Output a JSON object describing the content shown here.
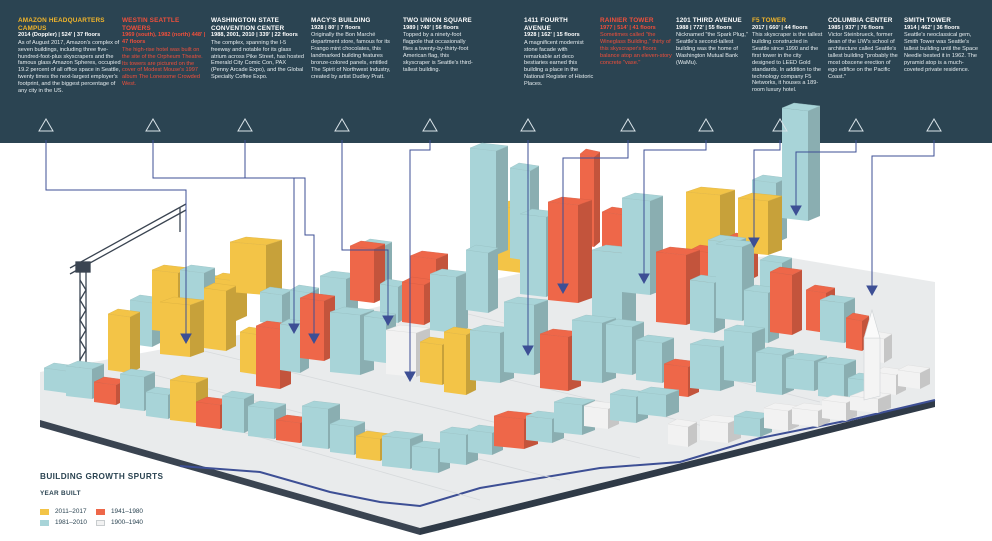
{
  "colors": {
    "band": "#2b4452",
    "yellow": "#f3c447",
    "teal": "#a8d4d8",
    "red": "#ee6749",
    "white": "#f2f2f2",
    "line": "#3d4f95"
  },
  "callouts": [
    {
      "title": "AMAZON HEADQUARTERS CAMPUS",
      "meta": "2014 (Doppler) | 524' | 37 floors",
      "desc": "As of August 2017, Amazon's complex of seven buildings, including three five-hundred-foot-plus skyscrapers and the famous glass Amazon Spheres, occupied 19.2 percent of all office space in Seattle, twenty times the next-largest employer's footprint, and the biggest percentage of any city in the US.",
      "style": "yel"
    },
    {
      "title": "WESTIN SEATTLE TOWERS",
      "meta": "1969 (south), 1982 (north) 448' | 47 floors",
      "desc": "The high-rise hotel was built on the site of the Orpheum Theatre. Its towers are pictured on the cover of Modest Mouse's 1997 album The Lonesome Crowded West.",
      "style": "hl"
    },
    {
      "title": "WASHINGTON STATE CONVENTION CENTER",
      "meta": "1988, 2001, 2010 | 339' | 22 floors",
      "desc": "The complex, spanning the I-5 freeway and notable for its glass atrium across Pike Street, has hosted Emerald City Comic Con, PAX (Penny Arcade Expo), and the Global Specialty Coffee Expo.",
      "style": "plain"
    },
    {
      "title": "MACY'S BUILDING",
      "meta": "1928 | 80' | 7 floors",
      "desc": "Originally the Bon Marché department store, famous for its Frango mint chocolates, this landmarked building features bronze-colored panels, entitled The Spirit of Northwest Industry, created by artist Dudley Pratt.",
      "style": "plain"
    },
    {
      "title": "TWO UNION SQUARE",
      "meta": "1989 | 740' | 56 floors",
      "desc": "Topped by a ninety-foot flagpole that occasionally flies a twenty-by-thirty-foot American flag, this skyscraper is Seattle's third-tallest building.",
      "style": "plain"
    },
    {
      "title": "1411 FOURTH AVENUE",
      "meta": "1928 | 162' | 15 floors",
      "desc": "A magnificent modernist stone facade with remarkable art deco bestiaries earned this building a place in the National Register of Historic Places.",
      "style": "plain"
    },
    {
      "title": "RAINIER TOWER",
      "meta": "1977 | 514' | 41 floors",
      "desc": "Sometimes called \"the Wineglass Building,\" thirty of this skyscraper's floors balance atop an eleven-story concrete \"vase.\"",
      "style": "hl"
    },
    {
      "title": "1201 THIRD AVENUE",
      "meta": "1988 | 772' | 55 floors",
      "desc": "Nicknamed \"the Spark Plug,\" Seattle's second-tallest building was the home of Washington Mutual Bank (WaMu).",
      "style": "plain"
    },
    {
      "title": "F5 TOWER",
      "meta": "2017 | 660' | 44 floors",
      "desc": "This skyscraper is the tallest building constructed in Seattle since 1990 and the first tower in the city designed to LEED Gold standards. In addition to the technology company F5 Networks, it houses a 189-room luxury hotel.",
      "style": "yel"
    },
    {
      "title": "COLUMBIA CENTER",
      "meta": "1985 | 937' | 76 floors",
      "desc": "Victor Steinbrueck, former dean of the UW's school of architecture called Seattle's tallest building \"probably the most obscene erection of ego edifice on the Pacific Coast.\"",
      "style": "plain"
    },
    {
      "title": "SMITH TOWER",
      "meta": "1914 | 462' | 36 floors",
      "desc": "Seattle's neoclassical gem, Smith Tower was Seattle's tallest building until the Space Needle bested it in 1962. The pyramid atop is a much-coveted private residence.",
      "style": "plain"
    }
  ],
  "legend": {
    "title": "BUILDING GROWTH SPURTS",
    "subtitle": "YEAR BUILT",
    "items": [
      {
        "label": "2011–2017",
        "color": "#f3c447"
      },
      {
        "label": "1941–1980",
        "color": "#ee6749"
      },
      {
        "label": "1981–2010",
        "color": "#a8d4d8"
      },
      {
        "label": "1900–1940",
        "color": "#f2f2f2"
      }
    ]
  }
}
